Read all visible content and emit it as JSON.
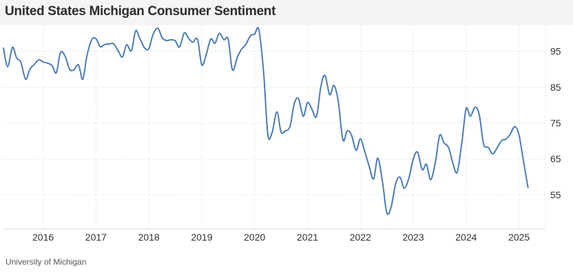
{
  "header": {
    "title": "United States Michigan Consumer Sentiment"
  },
  "footer": {
    "source": "University of Michigan"
  },
  "chart_data": {
    "type": "line",
    "title": "United States Michigan Consumer Sentiment",
    "xlabel": "",
    "ylabel": "",
    "x_ticks": [
      "2016",
      "2017",
      "2018",
      "2019",
      "2020",
      "2021",
      "2022",
      "2023",
      "2024",
      "2025"
    ],
    "y_ticks": [
      55,
      65,
      75,
      85,
      95
    ],
    "xlim": [
      2015.25,
      2025.5
    ],
    "ylim": [
      45.5,
      102
    ],
    "grid": true,
    "line_color": "#4a7bb7",
    "series": [
      {
        "x": [
          2015.25,
          2015.33,
          2015.42,
          2015.5,
          2015.58,
          2015.67,
          2015.75,
          2015.83,
          2015.92,
          2016.0,
          2016.08,
          2016.17,
          2016.25,
          2016.33,
          2016.42,
          2016.5,
          2016.58,
          2016.67,
          2016.75,
          2016.83,
          2016.92,
          2017.0,
          2017.08,
          2017.17,
          2017.25,
          2017.33,
          2017.42,
          2017.5,
          2017.58,
          2017.67,
          2017.75,
          2017.83,
          2017.92,
          2018.0,
          2018.08,
          2018.17,
          2018.25,
          2018.33,
          2018.42,
          2018.5,
          2018.58,
          2018.67,
          2018.75,
          2018.83,
          2018.92,
          2019.0,
          2019.08,
          2019.17,
          2019.25,
          2019.33,
          2019.42,
          2019.5,
          2019.58,
          2019.67,
          2019.75,
          2019.83,
          2019.92,
          2020.0,
          2020.08,
          2020.17,
          2020.25,
          2020.33,
          2020.42,
          2020.5,
          2020.58,
          2020.67,
          2020.75,
          2020.83,
          2020.92,
          2021.0,
          2021.08,
          2021.17,
          2021.25,
          2021.33,
          2021.42,
          2021.5,
          2021.58,
          2021.67,
          2021.75,
          2021.83,
          2021.92,
          2022.0,
          2022.08,
          2022.17,
          2022.25,
          2022.33,
          2022.42,
          2022.5,
          2022.58,
          2022.67,
          2022.75,
          2022.83,
          2022.92,
          2023.0,
          2023.08,
          2023.17,
          2023.25,
          2023.33,
          2023.42,
          2023.5,
          2023.58,
          2023.67,
          2023.75,
          2023.83,
          2023.92,
          2024.0,
          2024.08,
          2024.17,
          2024.25,
          2024.33,
          2024.42,
          2024.5,
          2024.58,
          2024.67,
          2024.75,
          2024.83,
          2024.92,
          2025.0,
          2025.08,
          2025.17
        ],
        "y": [
          95.9,
          90.7,
          96.1,
          93.1,
          91.9,
          87.2,
          90.0,
          91.3,
          92.6,
          92.0,
          91.7,
          91.0,
          89.0,
          94.7,
          93.5,
          90.0,
          89.8,
          91.2,
          87.2,
          93.8,
          98.2,
          98.5,
          96.3,
          96.9,
          97.0,
          97.1,
          95.1,
          93.4,
          96.8,
          95.1,
          100.7,
          98.5,
          95.9,
          95.7,
          99.7,
          101.4,
          98.8,
          98.0,
          98.2,
          97.9,
          96.2,
          100.1,
          98.6,
          97.5,
          98.3,
          91.2,
          93.8,
          98.4,
          97.2,
          100.0,
          98.2,
          98.4,
          89.8,
          93.2,
          95.5,
          96.8,
          99.3,
          99.8,
          101.0,
          89.1,
          71.8,
          72.3,
          78.1,
          72.5,
          72.8,
          74.1,
          80.4,
          81.8,
          76.9,
          80.7,
          79.0,
          76.8,
          84.9,
          88.3,
          82.9,
          85.5,
          81.2,
          70.3,
          72.8,
          71.7,
          67.4,
          70.6,
          67.2,
          62.8,
          59.4,
          65.2,
          58.4,
          50.0,
          51.5,
          58.2,
          59.9,
          56.8,
          59.8,
          64.9,
          66.9,
          62.0,
          63.5,
          59.2,
          64.2,
          71.6,
          69.5,
          68.1,
          63.8,
          61.3,
          69.7,
          79.0,
          76.9,
          79.4,
          77.2,
          69.1,
          68.2,
          66.4,
          67.9,
          70.1,
          70.5,
          71.8,
          74.0,
          71.7,
          64.7,
          57.0
        ]
      }
    ]
  }
}
